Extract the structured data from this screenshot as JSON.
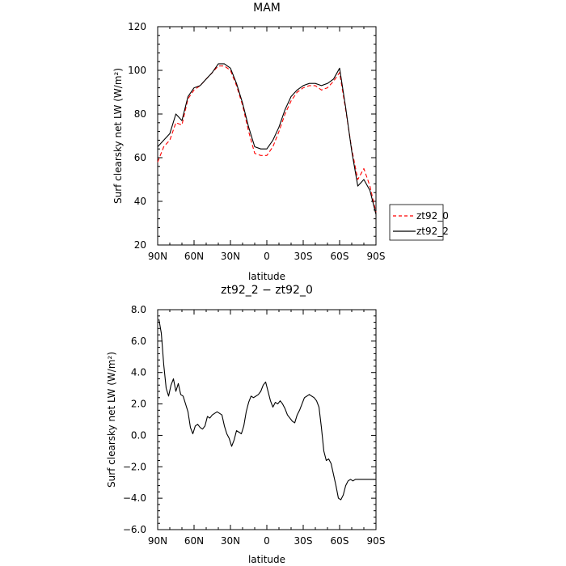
{
  "chart_data": [
    {
      "type": "line",
      "title": "MAM",
      "xlabel": "latitude",
      "ylabel": "Surf clearsky net LW (W/m²)",
      "xlim": [
        90,
        -90
      ],
      "ylim": [
        20,
        120
      ],
      "xticks": [
        90,
        60,
        30,
        0,
        -30,
        -60,
        -90
      ],
      "xtick_labels": [
        "90N",
        "60N",
        "30N",
        "0",
        "30S",
        "60S",
        "90S"
      ],
      "yticks": [
        20,
        40,
        60,
        80,
        100,
        120
      ],
      "ytick_labels": [
        "20",
        "40",
        "60",
        "80",
        "100",
        "120"
      ],
      "legend": "outside-right",
      "series": [
        {
          "name": "zt92_0",
          "color": "#ff0000",
          "dash": "dashed",
          "x": [
            90,
            85,
            80,
            75,
            70,
            65,
            60,
            55,
            50,
            45,
            40,
            35,
            30,
            25,
            20,
            15,
            10,
            5,
            0,
            -5,
            -10,
            -15,
            -20,
            -25,
            -30,
            -35,
            -40,
            -45,
            -50,
            -55,
            -60,
            -65,
            -70,
            -75,
            -80,
            -85,
            -90
          ],
          "values": [
            58,
            65,
            68,
            76,
            75,
            87,
            91,
            93,
            96,
            99,
            102,
            102,
            100,
            93,
            84,
            72,
            62,
            61,
            61,
            65,
            72,
            80,
            86,
            90,
            92,
            93,
            93,
            91,
            92,
            95,
            99,
            82,
            64,
            50,
            55,
            47,
            35
          ]
        },
        {
          "name": "zt92_2",
          "color": "#000000",
          "dash": "solid",
          "x": [
            90,
            85,
            80,
            75,
            70,
            65,
            60,
            55,
            50,
            45,
            40,
            35,
            30,
            25,
            20,
            15,
            10,
            5,
            0,
            -5,
            -10,
            -15,
            -20,
            -25,
            -30,
            -35,
            -40,
            -45,
            -50,
            -55,
            -60,
            -65,
            -70,
            -75,
            -80,
            -85,
            -90
          ],
          "values": [
            65,
            68,
            71,
            80,
            77,
            88,
            92,
            93,
            96,
            99,
            103,
            103,
            101,
            94,
            85,
            74,
            65,
            64,
            64,
            68,
            74,
            82,
            88,
            91,
            93,
            94,
            94,
            93,
            94,
            96,
            101,
            83,
            63,
            47,
            50,
            45,
            34
          ]
        }
      ]
    },
    {
      "type": "line",
      "title": "zt92_2 − zt92_0",
      "xlabel": "latitude",
      "ylabel": "Surf clearsky net LW (W/m²)",
      "xlim": [
        90,
        -90
      ],
      "ylim": [
        -6,
        8
      ],
      "xticks": [
        90,
        60,
        30,
        0,
        -30,
        -60,
        -90
      ],
      "xtick_labels": [
        "90N",
        "60N",
        "30N",
        "0",
        "30S",
        "60S",
        "90S"
      ],
      "yticks": [
        -6,
        -4,
        -2,
        0,
        2,
        4,
        6,
        8
      ],
      "ytick_labels": [
        "−6.0",
        "−4.0",
        "−2.0",
        "0.0",
        "2.0",
        "4.0",
        "6.0",
        "8.0"
      ],
      "series": [
        {
          "color": "#000000",
          "dash": "solid",
          "x": [
            89,
            87,
            85,
            83,
            81,
            79,
            77,
            75,
            73,
            71,
            69,
            67,
            65,
            63,
            61,
            59,
            57,
            55,
            53,
            51,
            49,
            47,
            45,
            43,
            41,
            39,
            37,
            35,
            33,
            31,
            29,
            27,
            25,
            23,
            21,
            19,
            17,
            15,
            13,
            11,
            9,
            7,
            5,
            3,
            1,
            -1,
            -3,
            -5,
            -7,
            -9,
            -11,
            -13,
            -15,
            -17,
            -19,
            -21,
            -23,
            -25,
            -27,
            -29,
            -31,
            -33,
            -35,
            -37,
            -39,
            -41,
            -43,
            -45,
            -47,
            -49,
            -51,
            -53,
            -55,
            -57,
            -59,
            -61,
            -63,
            -65,
            -67,
            -69,
            -71,
            -73,
            -75,
            -77,
            -79,
            -81,
            -83,
            -85,
            -87,
            -89
          ],
          "values": [
            7.4,
            6.5,
            4.5,
            3.0,
            2.5,
            3.2,
            3.6,
            2.8,
            3.3,
            2.6,
            2.5,
            2.0,
            1.5,
            0.5,
            0.1,
            0.6,
            0.7,
            0.5,
            0.4,
            0.6,
            1.2,
            1.1,
            1.3,
            1.4,
            1.5,
            1.4,
            1.3,
            0.6,
            0.1,
            -0.2,
            -0.7,
            -0.3,
            0.3,
            0.2,
            0.1,
            0.6,
            1.5,
            2.1,
            2.5,
            2.4,
            2.5,
            2.6,
            2.8,
            3.2,
            3.4,
            2.8,
            2.2,
            1.8,
            2.1,
            2.0,
            2.2,
            2.0,
            1.7,
            1.3,
            1.1,
            0.9,
            0.8,
            1.3,
            1.6,
            2.0,
            2.4,
            2.5,
            2.6,
            2.5,
            2.4,
            2.2,
            1.8,
            0.5,
            -1.0,
            -1.6,
            -1.5,
            -1.8,
            -2.5,
            -3.2,
            -4.0,
            -4.1,
            -3.8,
            -3.2,
            -2.9,
            -2.8,
            -2.9,
            -2.8,
            -2.8,
            -2.8,
            -2.8,
            -2.8,
            -2.8,
            -2.8,
            -2.8,
            -2.8
          ]
        }
      ]
    }
  ]
}
